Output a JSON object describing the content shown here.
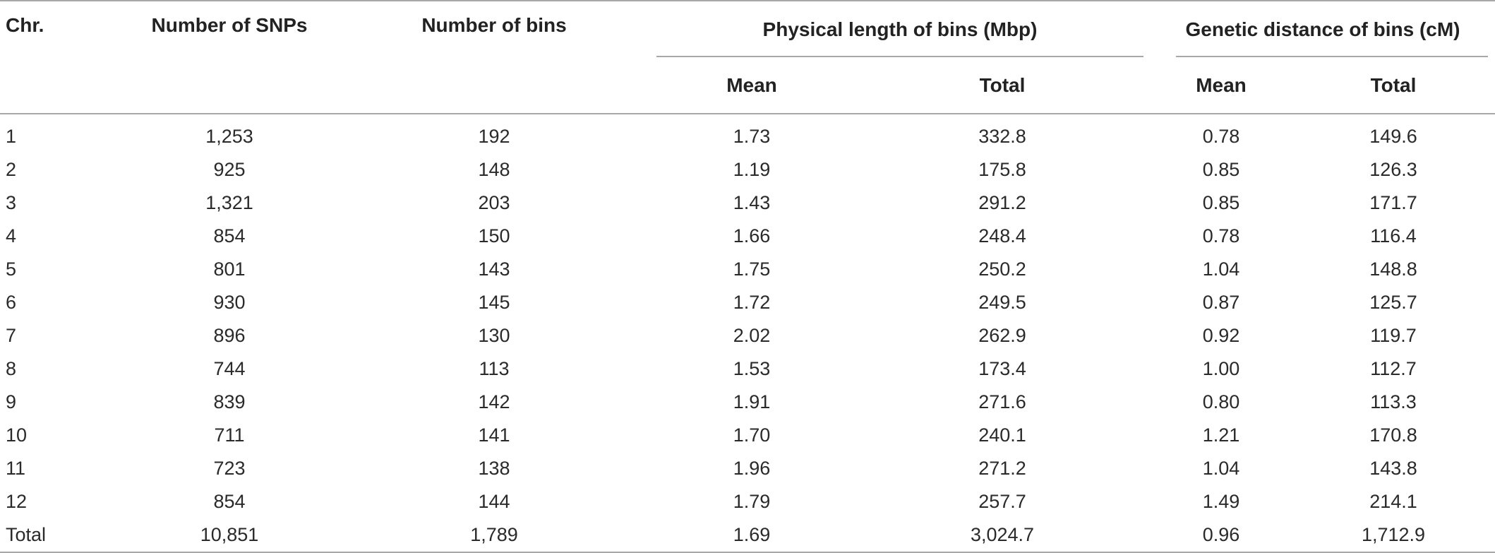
{
  "table": {
    "headers": {
      "chr": "Chr.",
      "snps": "Number of SNPs",
      "bins": "Number of bins",
      "physical_group": "Physical length of bins (Mbp)",
      "genetic_group": "Genetic distance of bins (cM)",
      "physical_mean": "Mean",
      "physical_total": "Total",
      "genetic_mean": "Mean",
      "genetic_total": "Total"
    },
    "rows": [
      {
        "chr": "1",
        "snps": "1,253",
        "bins": "192",
        "phys_mean": "1.73",
        "phys_total": "332.8",
        "gen_mean": "0.78",
        "gen_total": "149.6"
      },
      {
        "chr": "2",
        "snps": "925",
        "bins": "148",
        "phys_mean": "1.19",
        "phys_total": "175.8",
        "gen_mean": "0.85",
        "gen_total": "126.3"
      },
      {
        "chr": "3",
        "snps": "1,321",
        "bins": "203",
        "phys_mean": "1.43",
        "phys_total": "291.2",
        "gen_mean": "0.85",
        "gen_total": "171.7"
      },
      {
        "chr": "4",
        "snps": "854",
        "bins": "150",
        "phys_mean": "1.66",
        "phys_total": "248.4",
        "gen_mean": "0.78",
        "gen_total": "116.4"
      },
      {
        "chr": "5",
        "snps": "801",
        "bins": "143",
        "phys_mean": "1.75",
        "phys_total": "250.2",
        "gen_mean": "1.04",
        "gen_total": "148.8"
      },
      {
        "chr": "6",
        "snps": "930",
        "bins": "145",
        "phys_mean": "1.72",
        "phys_total": "249.5",
        "gen_mean": "0.87",
        "gen_total": "125.7"
      },
      {
        "chr": "7",
        "snps": "896",
        "bins": "130",
        "phys_mean": "2.02",
        "phys_total": "262.9",
        "gen_mean": "0.92",
        "gen_total": "119.7"
      },
      {
        "chr": "8",
        "snps": "744",
        "bins": "113",
        "phys_mean": "1.53",
        "phys_total": "173.4",
        "gen_mean": "1.00",
        "gen_total": "112.7"
      },
      {
        "chr": "9",
        "snps": "839",
        "bins": "142",
        "phys_mean": "1.91",
        "phys_total": "271.6",
        "gen_mean": "0.80",
        "gen_total": "113.3"
      },
      {
        "chr": "10",
        "snps": "711",
        "bins": "141",
        "phys_mean": "1.70",
        "phys_total": "240.1",
        "gen_mean": "1.21",
        "gen_total": "170.8"
      },
      {
        "chr": "11",
        "snps": "723",
        "bins": "138",
        "phys_mean": "1.96",
        "phys_total": "271.2",
        "gen_mean": "1.04",
        "gen_total": "143.8"
      },
      {
        "chr": "12",
        "snps": "854",
        "bins": "144",
        "phys_mean": "1.79",
        "phys_total": "257.7",
        "gen_mean": "1.49",
        "gen_total": "214.1"
      },
      {
        "chr": "Total",
        "snps": "10,851",
        "bins": "1,789",
        "phys_mean": "1.69",
        "phys_total": "3,024.7",
        "gen_mean": "0.96",
        "gen_total": "1,712.9"
      }
    ]
  }
}
